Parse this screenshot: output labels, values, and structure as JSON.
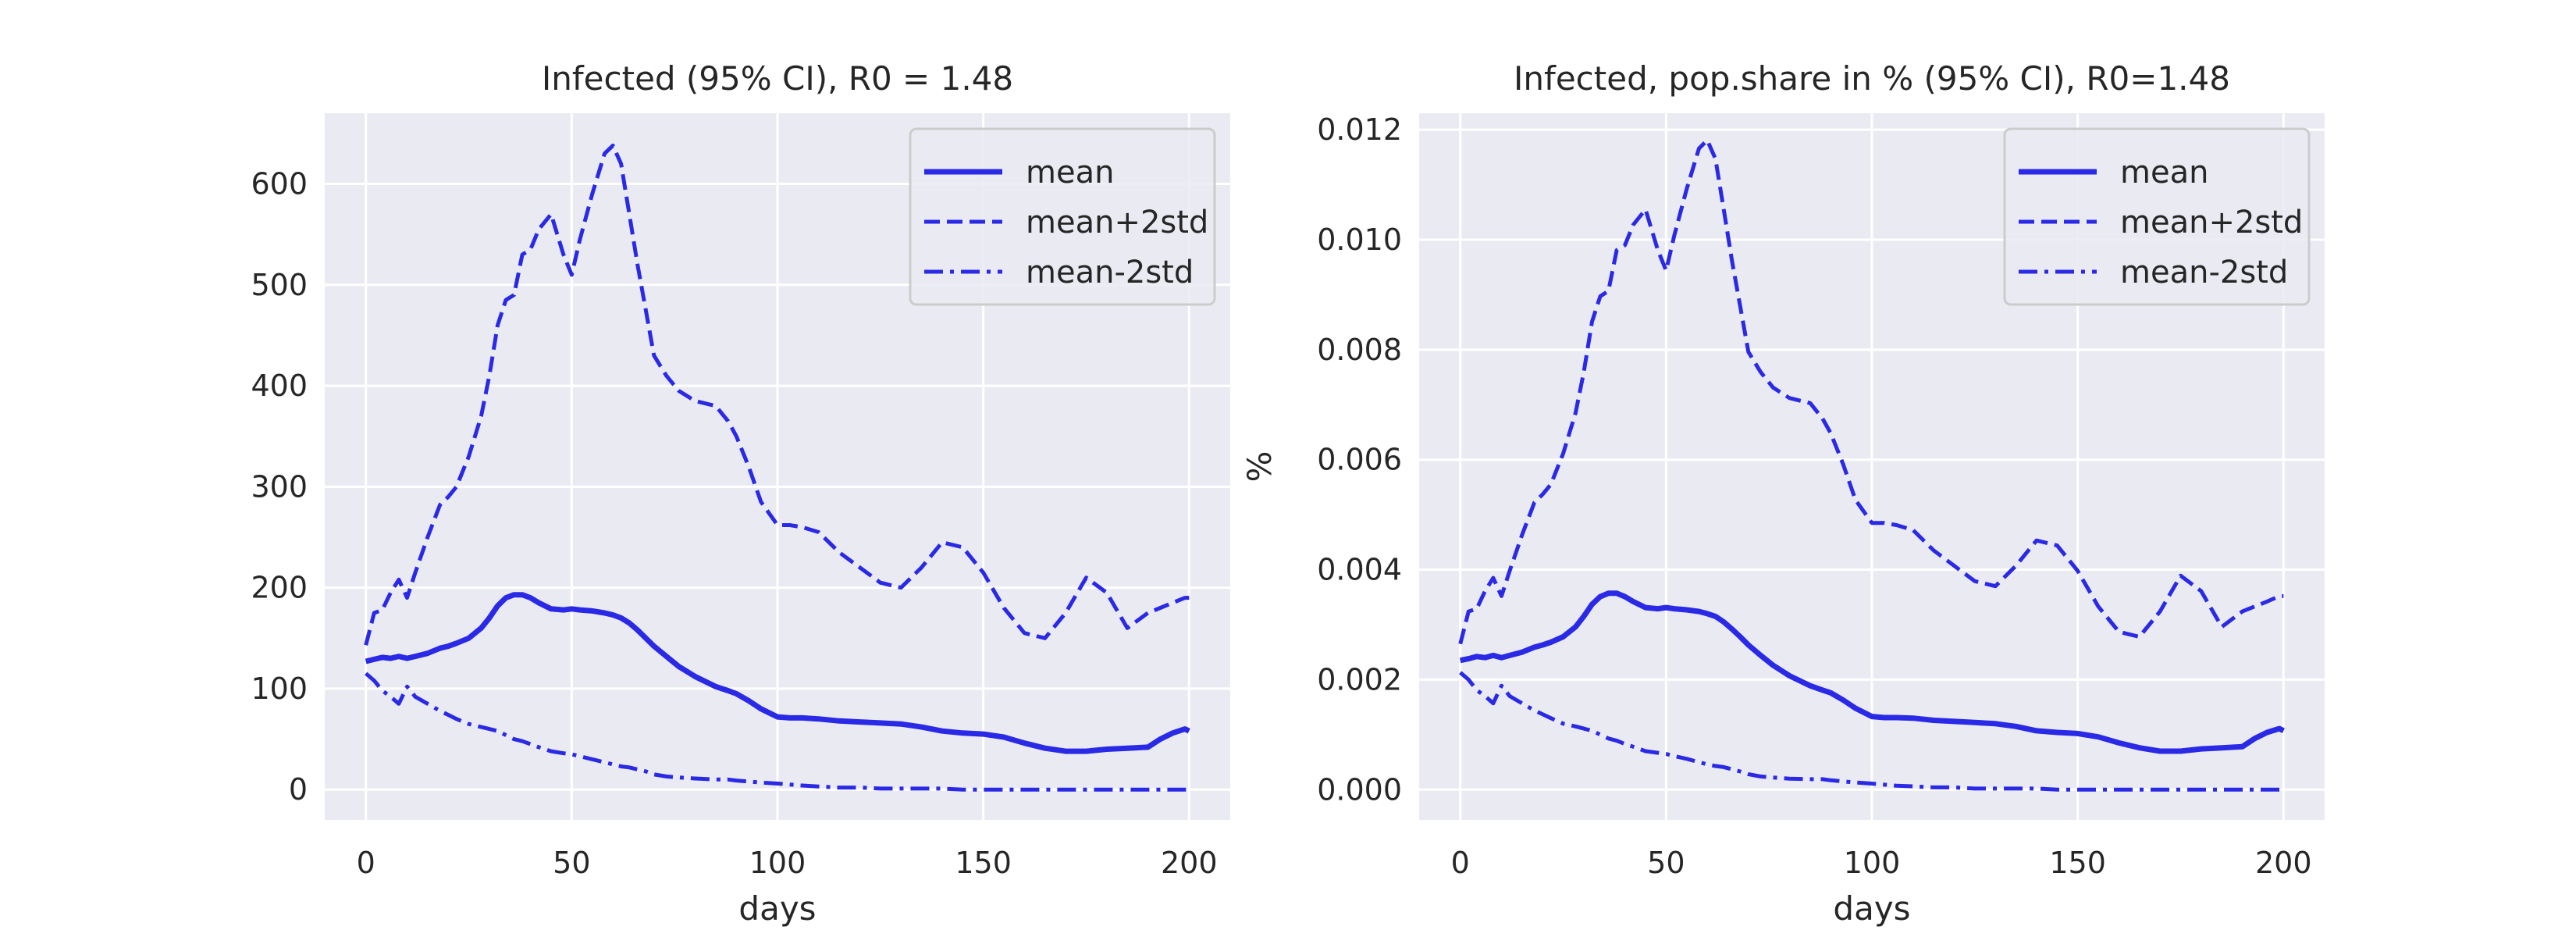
{
  "chart_data": [
    {
      "type": "line",
      "title": "Infected (95% CI), R0 = 1.48",
      "xlabel": "days",
      "ylabel": "",
      "xlim": [
        -10,
        210
      ],
      "ylim": [
        -30,
        670
      ],
      "xticks": [
        0,
        50,
        100,
        150,
        200
      ],
      "xtick_labels": [
        "0",
        "50",
        "100",
        "150",
        "200"
      ],
      "yticks": [
        0,
        100,
        200,
        300,
        400,
        500,
        600
      ],
      "ytick_labels": [
        "0",
        "100",
        "200",
        "300",
        "400",
        "500",
        "600"
      ],
      "grid": true,
      "legend_position": "top-right",
      "x": [
        0,
        2,
        4,
        6,
        8,
        10,
        12,
        15,
        18,
        20,
        22,
        25,
        28,
        30,
        32,
        34,
        36,
        38,
        40,
        42,
        45,
        48,
        50,
        52,
        55,
        58,
        60,
        62,
        64,
        66,
        68,
        70,
        73,
        76,
        80,
        85,
        88,
        90,
        93,
        96,
        100,
        103,
        106,
        110,
        115,
        120,
        125,
        130,
        135,
        140,
        145,
        150,
        155,
        160,
        165,
        170,
        175,
        180,
        185,
        190,
        193,
        196,
        199,
        200
      ],
      "series": [
        {
          "name": "mean",
          "style": "solid",
          "values": [
            127,
            129,
            131,
            130,
            132,
            130,
            132,
            135,
            140,
            142,
            145,
            150,
            160,
            170,
            182,
            190,
            193,
            193,
            190,
            185,
            179,
            178,
            179,
            178,
            177,
            175,
            173,
            170,
            165,
            158,
            150,
            142,
            132,
            122,
            112,
            102,
            98,
            95,
            88,
            80,
            72,
            71,
            71,
            70,
            68,
            67,
            66,
            65,
            62,
            58,
            56,
            55,
            52,
            46,
            41,
            38,
            38,
            40,
            41,
            42,
            50,
            56,
            60,
            58
          ]
        },
        {
          "name": "mean+2std",
          "style": "dashed",
          "values": [
            143,
            175,
            178,
            195,
            208,
            190,
            215,
            250,
            282,
            290,
            300,
            330,
            370,
            410,
            460,
            485,
            490,
            530,
            535,
            555,
            570,
            530,
            510,
            545,
            590,
            630,
            638,
            620,
            570,
            520,
            475,
            430,
            410,
            395,
            385,
            380,
            365,
            350,
            320,
            285,
            262,
            262,
            260,
            255,
            235,
            220,
            205,
            200,
            220,
            245,
            240,
            215,
            180,
            155,
            150,
            175,
            210,
            195,
            160,
            175,
            180,
            185,
            190,
            190
          ]
        },
        {
          "name": "mean-2std",
          "style": "dashdot",
          "values": [
            115,
            108,
            98,
            92,
            85,
            102,
            92,
            85,
            78,
            74,
            70,
            65,
            62,
            60,
            58,
            54,
            50,
            48,
            45,
            42,
            38,
            36,
            35,
            33,
            30,
            27,
            25,
            23,
            22,
            20,
            18,
            15,
            13,
            12,
            11,
            10,
            10,
            9,
            8,
            7,
            6,
            5,
            4,
            3,
            2,
            2,
            1,
            1,
            1,
            1,
            0,
            0,
            0,
            0,
            0,
            0,
            0,
            0,
            0,
            0,
            0,
            0,
            0,
            0
          ]
        }
      ]
    },
    {
      "type": "line",
      "title": "Infected, pop.share in % (95% CI), R0=1.48",
      "xlabel": "days",
      "ylabel": "%",
      "xlim": [
        -10,
        210
      ],
      "ylim": [
        -0.00055,
        0.0123
      ],
      "xticks": [
        0,
        50,
        100,
        150,
        200
      ],
      "xtick_labels": [
        "0",
        "50",
        "100",
        "150",
        "200"
      ],
      "yticks": [
        0,
        0.002,
        0.004,
        0.006,
        0.008,
        0.01,
        0.012
      ],
      "ytick_labels": [
        "0.000",
        "0.002",
        "0.004",
        "0.006",
        "0.008",
        "0.010",
        "0.012"
      ],
      "grid": true,
      "legend_position": "top-right",
      "x": [
        0,
        2,
        4,
        6,
        8,
        10,
        12,
        15,
        18,
        20,
        22,
        25,
        28,
        30,
        32,
        34,
        36,
        38,
        40,
        42,
        45,
        48,
        50,
        52,
        55,
        58,
        60,
        62,
        64,
        66,
        68,
        70,
        73,
        76,
        80,
        85,
        88,
        90,
        93,
        96,
        100,
        103,
        106,
        110,
        115,
        120,
        125,
        130,
        135,
        140,
        145,
        150,
        155,
        160,
        165,
        170,
        175,
        180,
        185,
        190,
        193,
        196,
        199,
        200
      ],
      "series": [
        {
          "name": "mean",
          "style": "solid",
          "values": [
            0.00235,
            0.00238,
            0.00242,
            0.0024,
            0.00244,
            0.0024,
            0.00244,
            0.0025,
            0.00259,
            0.00263,
            0.00268,
            0.00278,
            0.00296,
            0.00315,
            0.00337,
            0.00351,
            0.00357,
            0.00357,
            0.00351,
            0.00342,
            0.00331,
            0.00329,
            0.00331,
            0.00329,
            0.00327,
            0.00324,
            0.0032,
            0.00315,
            0.00305,
            0.00292,
            0.00278,
            0.00263,
            0.00244,
            0.00226,
            0.00207,
            0.00189,
            0.00181,
            0.00176,
            0.00163,
            0.00148,
            0.00133,
            0.00131,
            0.00131,
            0.0013,
            0.00126,
            0.00124,
            0.00122,
            0.0012,
            0.00115,
            0.00107,
            0.00104,
            0.00102,
            0.00096,
            0.00085,
            0.00076,
            0.0007,
            0.0007,
            0.00074,
            0.00076,
            0.00078,
            0.00093,
            0.00104,
            0.00111,
            0.00107
          ]
        },
        {
          "name": "mean+2std",
          "style": "dashed",
          "values": [
            0.00265,
            0.00324,
            0.00329,
            0.00361,
            0.00385,
            0.00352,
            0.00398,
            0.00463,
            0.00522,
            0.00537,
            0.00555,
            0.00611,
            0.00685,
            0.00759,
            0.00851,
            0.00897,
            0.00907,
            0.00981,
            0.0099,
            0.01027,
            0.01055,
            0.00981,
            0.00944,
            0.01008,
            0.01092,
            0.01166,
            0.01181,
            0.01147,
            0.01055,
            0.00962,
            0.00879,
            0.00796,
            0.00759,
            0.00731,
            0.00712,
            0.00703,
            0.00675,
            0.00648,
            0.00592,
            0.00527,
            0.00485,
            0.00485,
            0.00481,
            0.00472,
            0.00435,
            0.00407,
            0.00379,
            0.0037,
            0.00407,
            0.00453,
            0.00444,
            0.00398,
            0.00333,
            0.00287,
            0.00278,
            0.00324,
            0.00389,
            0.00361,
            0.00296,
            0.00324,
            0.00333,
            0.00342,
            0.00352,
            0.00352
          ]
        },
        {
          "name": "mean-2std",
          "style": "dashdot",
          "values": [
            0.00213,
            0.002,
            0.00181,
            0.0017,
            0.00157,
            0.00189,
            0.0017,
            0.00157,
            0.00144,
            0.00137,
            0.0013,
            0.0012,
            0.00115,
            0.00111,
            0.00107,
            0.001,
            0.00093,
            0.00089,
            0.00083,
            0.00078,
            0.0007,
            0.00067,
            0.00065,
            0.00061,
            0.00056,
            0.0005,
            0.00046,
            0.00043,
            0.00041,
            0.00037,
            0.00033,
            0.00028,
            0.00024,
            0.00022,
            0.0002,
            0.00019,
            0.00019,
            0.00017,
            0.00015,
            0.00013,
            0.00011,
            9e-05,
            7e-05,
            6e-05,
            4e-05,
            4e-05,
            2e-05,
            2e-05,
            2e-05,
            2e-05,
            0,
            0,
            0,
            0,
            0,
            0,
            0,
            0,
            0,
            0,
            0,
            0,
            0,
            0
          ]
        }
      ]
    }
  ],
  "colors": {
    "line": "#2a2ae6",
    "plot_background": "#eaeaf2",
    "grid": "#ffffff",
    "text": "#262626"
  }
}
